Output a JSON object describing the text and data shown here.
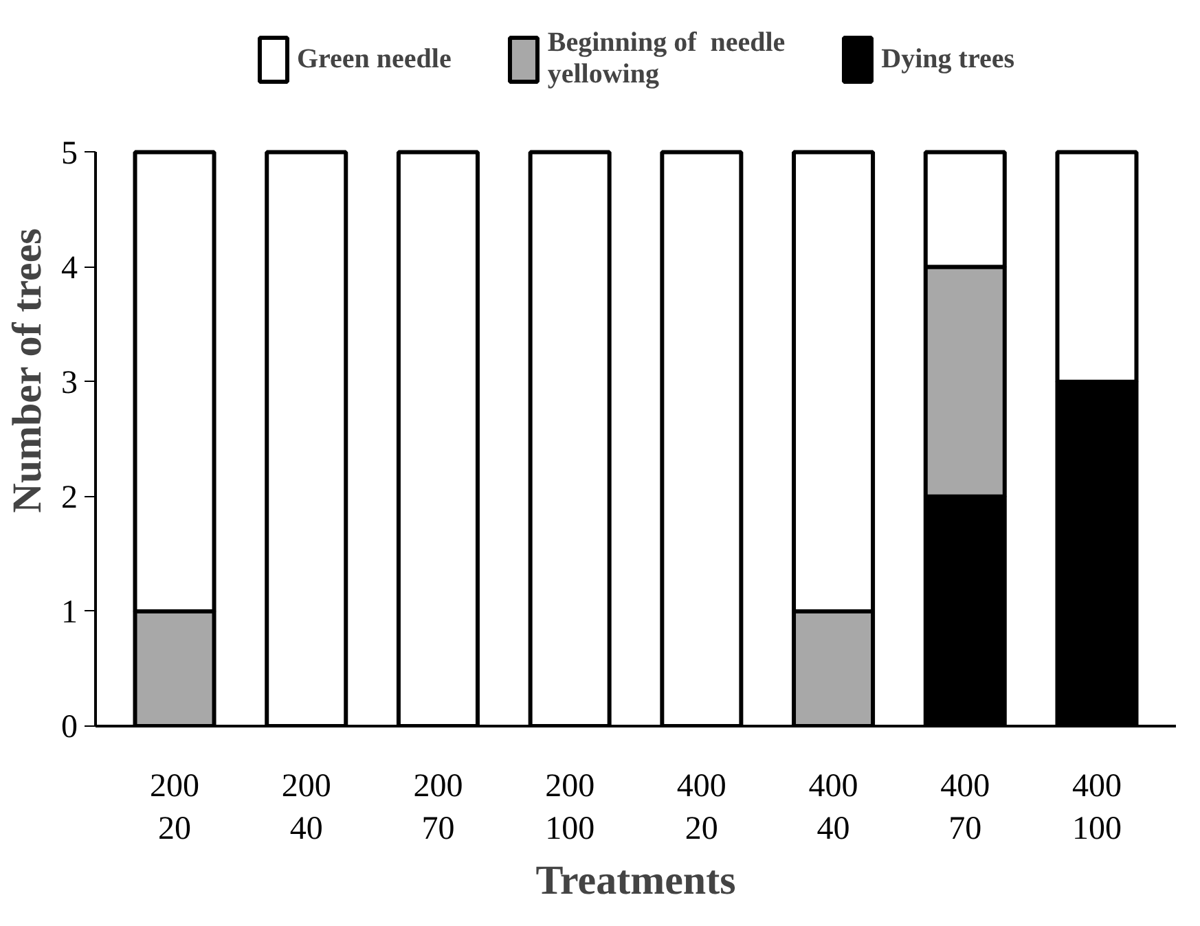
{
  "chart_data": {
    "type": "bar",
    "stacked": true,
    "xlabel": "Treatments",
    "ylabel": "Number of trees",
    "categories": [
      "200\n20",
      "200\n40",
      "200\n70",
      "200\n100",
      "400\n20",
      "400\n40",
      "400\n70",
      "400\n100"
    ],
    "series": [
      {
        "name": "Dying trees",
        "color": "#000000",
        "values": [
          0,
          0,
          0,
          0,
          0,
          0,
          2,
          3
        ]
      },
      {
        "name": "Beginning of  needle\nyellowing",
        "color": "#a8a8a8",
        "values": [
          1,
          0,
          0,
          0,
          0,
          1,
          2,
          0
        ]
      },
      {
        "name": "Green needle",
        "color": "#ffffff",
        "values": [
          4,
          5,
          5,
          5,
          5,
          4,
          1,
          2
        ]
      }
    ],
    "ylim": [
      0,
      5
    ],
    "yticks": [
      0,
      1,
      2,
      3,
      4,
      5
    ],
    "grid": false,
    "legend": "top"
  }
}
